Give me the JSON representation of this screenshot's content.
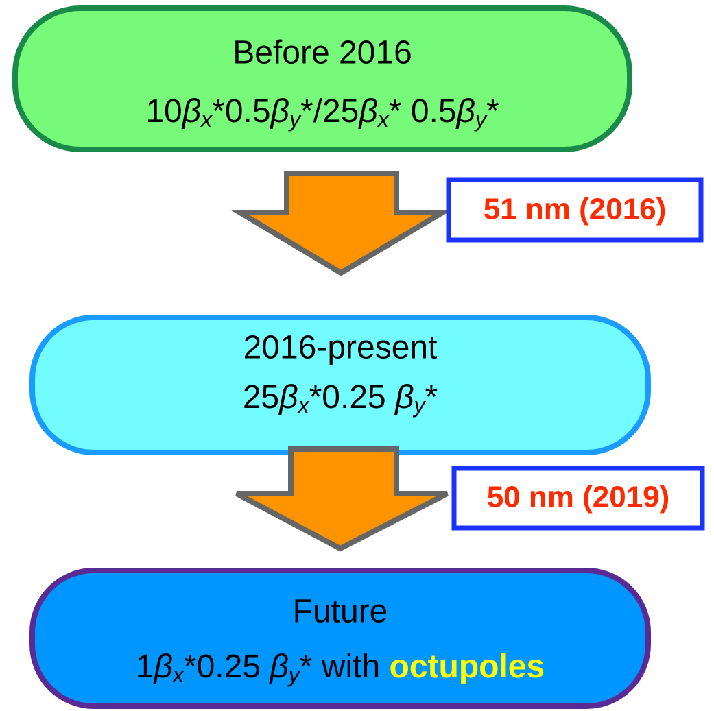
{
  "nodes": [
    {
      "label": "Before 2016",
      "formula": [
        {
          "text": "10",
          "style": "normal"
        },
        {
          "text": "β",
          "style": "italic"
        },
        {
          "text": "x",
          "style": "subscript"
        },
        {
          "text": "*0.5",
          "style": "normal"
        },
        {
          "text": "β",
          "style": "italic"
        },
        {
          "text": "y",
          "style": "subscript"
        },
        {
          "text": "*/25",
          "style": "normal"
        },
        {
          "text": "β",
          "style": "italic"
        },
        {
          "text": "x",
          "style": "subscript"
        },
        {
          "text": "* 0.5",
          "style": "normal"
        },
        {
          "text": "β",
          "style": "italic"
        },
        {
          "text": "y",
          "style": "subscript"
        },
        {
          "text": "*",
          "style": "normal"
        }
      ]
    },
    {
      "label": "2016-present",
      "formula": [
        {
          "text": "25",
          "style": "normal"
        },
        {
          "text": "β",
          "style": "italic"
        },
        {
          "text": "x",
          "style": "subscript"
        },
        {
          "text": "*0.25 ",
          "style": "normal"
        },
        {
          "text": "β",
          "style": "italic"
        },
        {
          "text": "y",
          "style": "subscript"
        },
        {
          "text": "*",
          "style": "normal"
        }
      ]
    },
    {
      "label": "Future",
      "formula": [
        {
          "text": "1",
          "style": "normal"
        },
        {
          "text": "β",
          "style": "italic"
        },
        {
          "text": "x",
          "style": "subscript"
        },
        {
          "text": "*0.25 ",
          "style": "normal"
        },
        {
          "text": "β",
          "style": "italic"
        },
        {
          "text": "y",
          "style": "subscript"
        },
        {
          "text": "* with ",
          "style": "normal"
        },
        {
          "text": "octupoles",
          "style": "bold",
          "color": "#ffff00"
        }
      ]
    }
  ],
  "arrows": [
    {
      "label": "51 nm (2016)"
    },
    {
      "label": "50 nm (2019)"
    }
  ]
}
